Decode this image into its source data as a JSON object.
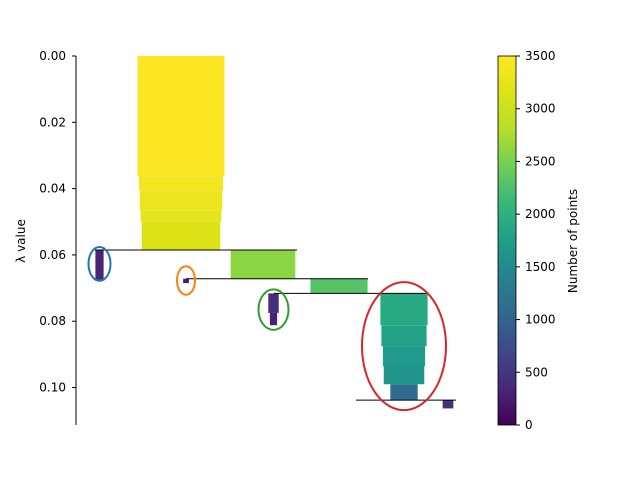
{
  "chart_data": {
    "type": "condensed-tree",
    "title": "",
    "ylabel": "λ value",
    "xlabel": "",
    "ylim": [
      0.0,
      0.1113
    ],
    "y_inverted": true,
    "yticks": [
      0.0,
      0.02,
      0.04,
      0.06,
      0.08,
      0.1
    ],
    "ytick_labels": [
      "0.00",
      "0.02",
      "0.04",
      "0.06",
      "0.08",
      "0.10"
    ],
    "colormap": "viridis",
    "colorbar": {
      "label": "Number of points",
      "range": [
        0,
        3500
      ],
      "ticks": [
        0,
        500,
        1000,
        1500,
        2000,
        2500,
        3000,
        3500
      ],
      "tick_labels": [
        "0",
        "500",
        "1000",
        "1500",
        "2000",
        "2500",
        "3000",
        "3500"
      ]
    },
    "splits": [
      {
        "lambda": 0.0585,
        "from": 95,
        "to": 297
      },
      {
        "lambda": 0.0672,
        "from": 186,
        "to": 368
      },
      {
        "lambda": 0.0716,
        "from": 274,
        "to": 426
      },
      {
        "lambda": 0.1038,
        "from": 356,
        "to": 456
      }
    ],
    "branches": [
      {
        "name": "root",
        "center": 181,
        "segments": [
          {
            "lambda_start": 0.0,
            "lambda_end": 0.0363,
            "points": 3500
          },
          {
            "lambda_start": 0.0363,
            "lambda_end": 0.0405,
            "points": 3380
          },
          {
            "lambda_start": 0.0405,
            "lambda_end": 0.0465,
            "points": 3320
          },
          {
            "lambda_start": 0.0465,
            "lambda_end": 0.05,
            "points": 3250
          },
          {
            "lambda_start": 0.05,
            "lambda_end": 0.0585,
            "points": 3160
          }
        ]
      },
      {
        "name": "selected-1",
        "center": 99.5,
        "segments": [
          {
            "lambda_start": 0.0585,
            "lambda_end": 0.0675,
            "points": 330
          }
        ]
      },
      {
        "name": "internal-a",
        "center": 263,
        "segments": [
          {
            "lambda_start": 0.0585,
            "lambda_end": 0.0672,
            "points": 2600
          }
        ]
      },
      {
        "name": "selected-2",
        "center": 186,
        "segments": [
          {
            "lambda_start": 0.0672,
            "lambda_end": 0.0685,
            "points": 230
          }
        ]
      },
      {
        "name": "internal-b",
        "center": 339,
        "segments": [
          {
            "lambda_start": 0.0672,
            "lambda_end": 0.0716,
            "points": 2300
          }
        ]
      },
      {
        "name": "selected-3",
        "center": 273.5,
        "segments": [
          {
            "lambda_start": 0.0716,
            "lambda_end": 0.0775,
            "points": 420
          },
          {
            "lambda_start": 0.0775,
            "lambda_end": 0.0812,
            "points": 290
          }
        ]
      },
      {
        "name": "selected-4",
        "center": 404,
        "segments": [
          {
            "lambda_start": 0.0716,
            "lambda_end": 0.0812,
            "points": 1900
          },
          {
            "lambda_start": 0.0812,
            "lambda_end": 0.0875,
            "points": 1820
          },
          {
            "lambda_start": 0.0875,
            "lambda_end": 0.0935,
            "points": 1700
          },
          {
            "lambda_start": 0.0935,
            "lambda_end": 0.099,
            "points": 1630
          },
          {
            "lambda_start": 0.099,
            "lambda_end": 0.1038,
            "points": 1100
          }
        ]
      },
      {
        "name": "leaf-small",
        "center": 448,
        "segments": [
          {
            "lambda_start": 0.1038,
            "lambda_end": 0.1063,
            "points": 430
          }
        ]
      }
    ],
    "selected_clusters": [
      {
        "name": "cluster-1",
        "color": "#1f77b4",
        "cx": 99.5,
        "lambda_center": 0.0627,
        "rx": 11,
        "lambda_radius": 0.0051
      },
      {
        "name": "cluster-2",
        "color": "#ff7f0e",
        "cx": 186,
        "lambda_center": 0.0677,
        "rx": 9,
        "lambda_radius": 0.0043
      },
      {
        "name": "cluster-3",
        "color": "#2ca02c",
        "cx": 273.5,
        "lambda_center": 0.0765,
        "rx": 15,
        "lambda_radius": 0.0061
      },
      {
        "name": "cluster-4",
        "color": "#d62728",
        "cx": 404,
        "lambda_center": 0.0875,
        "rx": 42,
        "lambda_radius": 0.0193
      }
    ]
  }
}
